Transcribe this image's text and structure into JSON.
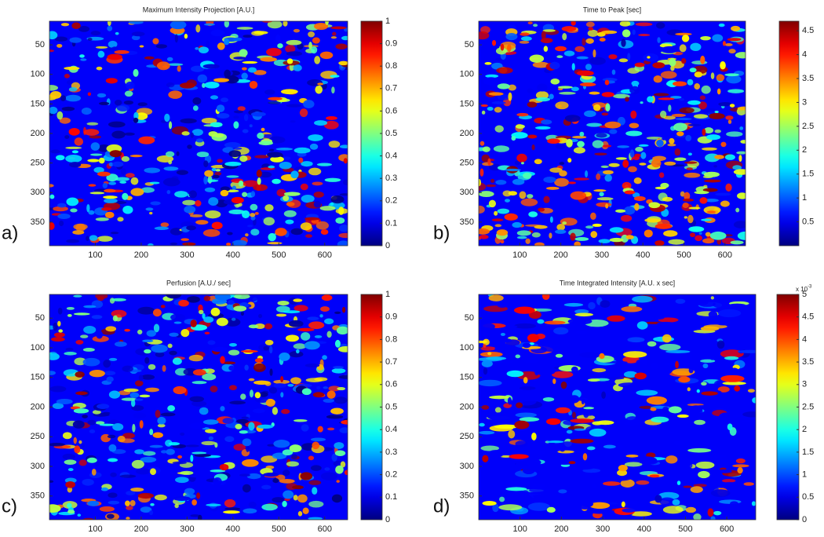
{
  "chart_data": [
    {
      "type": "heatmap",
      "title": "Maximum Intensity Projection [A.U.]",
      "panel_label": "a)",
      "colormap": "jet",
      "xlim": [
        0,
        650
      ],
      "xticks": [
        100,
        200,
        300,
        400,
        500,
        600
      ],
      "ylim": [
        10,
        390
      ],
      "yticks": [
        50,
        100,
        150,
        200,
        250,
        300,
        350
      ],
      "y_reversed": true,
      "colorbar": {
        "lim": [
          0,
          1
        ],
        "ticks": [
          0,
          0.1,
          0.2,
          0.3,
          0.4,
          0.5,
          0.6,
          0.7,
          0.8,
          0.9,
          1
        ]
      }
    },
    {
      "type": "heatmap",
      "title": "Time to Peak [sec]",
      "panel_label": "b)",
      "colormap": "jet",
      "xlim": [
        0,
        650
      ],
      "xticks": [
        100,
        200,
        300,
        400,
        500,
        600
      ],
      "ylim": [
        10,
        390
      ],
      "yticks": [
        50,
        100,
        150,
        200,
        250,
        300,
        350
      ],
      "y_reversed": true,
      "colorbar": {
        "lim": [
          0,
          4.7
        ],
        "ticks": [
          0.5,
          1,
          1.5,
          2,
          2.5,
          3,
          3.5,
          4,
          4.5
        ]
      }
    },
    {
      "type": "heatmap",
      "title": "Perfusion [A.U./ sec]",
      "panel_label": "c)",
      "colormap": "jet",
      "xlim": [
        0,
        650
      ],
      "xticks": [
        100,
        200,
        300,
        400,
        500,
        600
      ],
      "ylim": [
        10,
        390
      ],
      "yticks": [
        50,
        100,
        150,
        200,
        250,
        300,
        350
      ],
      "y_reversed": true,
      "colorbar": {
        "lim": [
          0,
          1
        ],
        "ticks": [
          0,
          0.1,
          0.2,
          0.3,
          0.4,
          0.5,
          0.6,
          0.7,
          0.8,
          0.9,
          1
        ]
      }
    },
    {
      "type": "heatmap",
      "title": "Time Integrated Intensity [A.U. x sec]",
      "panel_label": "d)",
      "colormap": "jet",
      "xlim": [
        0,
        670
      ],
      "xticks": [
        100,
        200,
        300,
        400,
        500,
        600
      ],
      "ylim": [
        10,
        390
      ],
      "yticks": [
        50,
        100,
        150,
        200,
        250,
        300,
        350
      ],
      "y_reversed": true,
      "colorbar": {
        "lim": [
          0,
          5
        ],
        "ticks": [
          0,
          0.5,
          1,
          1.5,
          2,
          2.5,
          3,
          3.5,
          4,
          4.5,
          5
        ],
        "exponent_base": "x 10",
        "exponent": "-3"
      }
    }
  ]
}
